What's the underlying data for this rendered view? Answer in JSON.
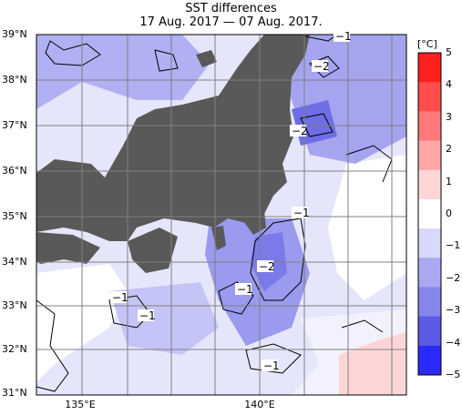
{
  "title": "SST differences",
  "subtitle": "17 Aug. 2017 — 07 Aug. 2017.",
  "unit": "[°C]",
  "lat_labels": [
    "39°N",
    "38°N",
    "37°N",
    "36°N",
    "35°N",
    "34°N",
    "33°N",
    "32°N",
    "31°N"
  ],
  "lon_labels": [
    "135°E",
    "140°E"
  ],
  "colorbar": {
    "ticks": [
      "5",
      "4",
      "3",
      "2",
      "1",
      "0",
      "−1",
      "−2",
      "−3",
      "−4",
      "−5"
    ],
    "colors": [
      "#ff2020",
      "#ff4d4d",
      "#ff7a7a",
      "#ffa8a8",
      "#ffd6d6",
      "#ffffff",
      "#d8d8fb",
      "#a9a9f1",
      "#8585ea",
      "#5b5be4",
      "#2a2aff"
    ]
  },
  "contour_labels": [
    "−1",
    "−2",
    "−2",
    "−1",
    "−2",
    "−1",
    "−1",
    "−1",
    "−1"
  ],
  "colors": {
    "land": "#595959",
    "sea": "#ffffff",
    "grid": "#808080"
  }
}
